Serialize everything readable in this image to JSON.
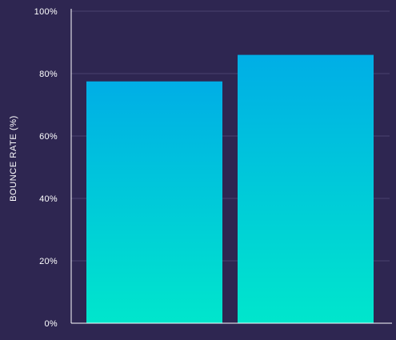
{
  "chart_data": {
    "type": "bar",
    "title": "",
    "xlabel": "",
    "ylabel": "BOUNCE RATE (%)",
    "categories": [
      "",
      ""
    ],
    "values": [
      77.5,
      86
    ],
    "ylim": [
      0,
      100
    ],
    "yticks": [
      "0%",
      "20%",
      "40%",
      "60%",
      "80%",
      "100%"
    ],
    "grid": true,
    "legend": "none",
    "colors": {
      "background": "#2e2651",
      "bar_top": "#00aee6",
      "bar_bottom": "#00e6cc",
      "grid": "#4a4270",
      "axis": "#ffffff",
      "text": "#ffffff"
    }
  }
}
